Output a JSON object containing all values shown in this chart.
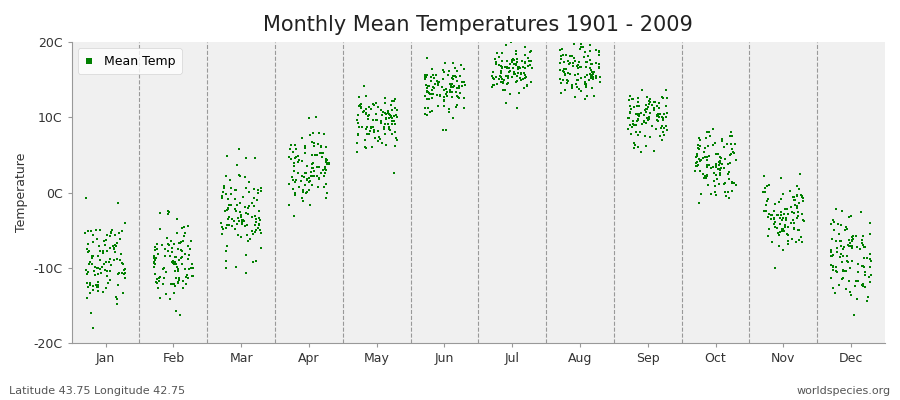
{
  "title": "Monthly Mean Temperatures 1901 - 2009",
  "ylabel": "Temperature",
  "bottom_left_label": "Latitude 43.75 Longitude 42.75",
  "bottom_right_label": "worldspecies.org",
  "legend_label": "Mean Temp",
  "ylim": [
    -20,
    20
  ],
  "yticks": [
    -20,
    -10,
    0,
    10,
    20
  ],
  "ytick_labels": [
    "-20C",
    "-10C",
    "0C",
    "10C",
    "20C"
  ],
  "months": [
    "Jan",
    "Feb",
    "Mar",
    "Apr",
    "May",
    "Jun",
    "Jul",
    "Aug",
    "Sep",
    "Oct",
    "Nov",
    "Dec"
  ],
  "month_centers": [
    1.0,
    2.0,
    3.0,
    4.0,
    5.0,
    6.0,
    7.0,
    8.0,
    9.0,
    10.0,
    11.0,
    12.0
  ],
  "mean_temps": [
    -9.5,
    -9.5,
    -2.5,
    3.5,
    9.5,
    13.5,
    16.5,
    16.0,
    10.0,
    4.0,
    -3.0,
    -8.5
  ],
  "temp_spread": [
    3.2,
    3.2,
    3.0,
    2.5,
    2.0,
    1.8,
    1.8,
    1.8,
    2.0,
    2.5,
    2.5,
    3.0
  ],
  "n_years": 109,
  "dot_color": "#008000",
  "dot_size": 4,
  "background_color": "#ffffff",
  "plot_bg_color": "#f0f0f0",
  "spine_color": "#999999",
  "dashed_line_color": "#999999",
  "title_fontsize": 15,
  "label_fontsize": 9,
  "tick_fontsize": 9
}
